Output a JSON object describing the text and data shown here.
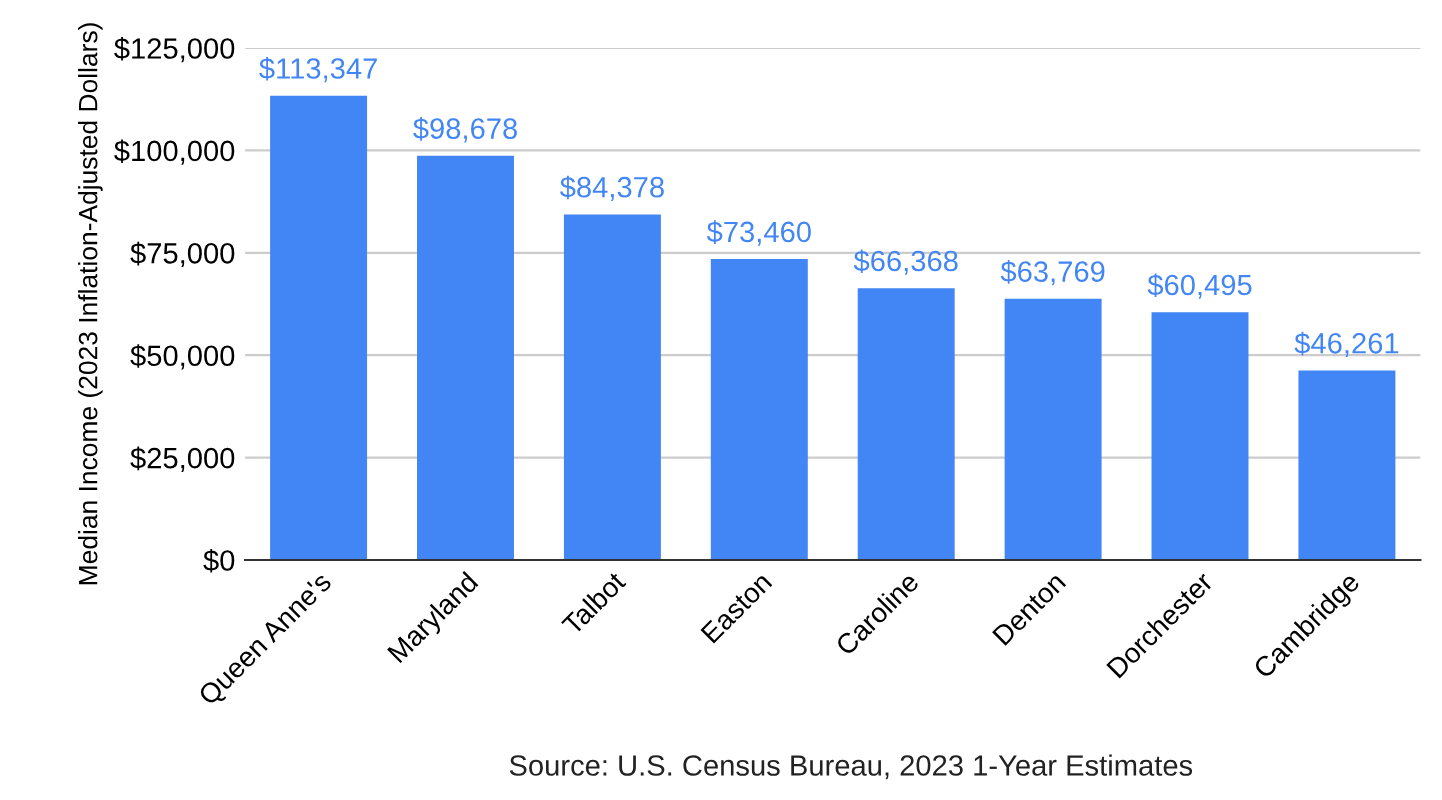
{
  "chart_data": {
    "type": "bar",
    "ylabel": "Median Income (2023 Inflation-Adjusted Dollars)",
    "categories": [
      "Queen Anne's",
      "Maryland",
      "Talbot",
      "Easton",
      "Caroline",
      "Denton",
      "Dorchester",
      "Cambridge"
    ],
    "values": [
      113347,
      98678,
      84378,
      73460,
      66368,
      63769,
      60495,
      46261
    ],
    "value_labels": [
      "$113,347",
      "$98,678",
      "$84,378",
      "$73,460",
      "$66,368",
      "$63,769",
      "$60,495",
      "$46,261"
    ],
    "color": "#4285f4",
    "ylim": [
      0,
      125000
    ],
    "yticks": [
      {
        "value": 0,
        "label": "$0"
      },
      {
        "value": 25000,
        "label": "$25,000"
      },
      {
        "value": 50000,
        "label": "$50,000"
      },
      {
        "value": 75000,
        "label": "$75,000"
      },
      {
        "value": 100000,
        "label": "$100,000"
      },
      {
        "value": 125000,
        "label": "$125,000"
      }
    ],
    "grid": "y",
    "legend": false,
    "annotations": [
      "Source: U.S. Census Bureau, 2023 1-Year Estimates"
    ]
  }
}
